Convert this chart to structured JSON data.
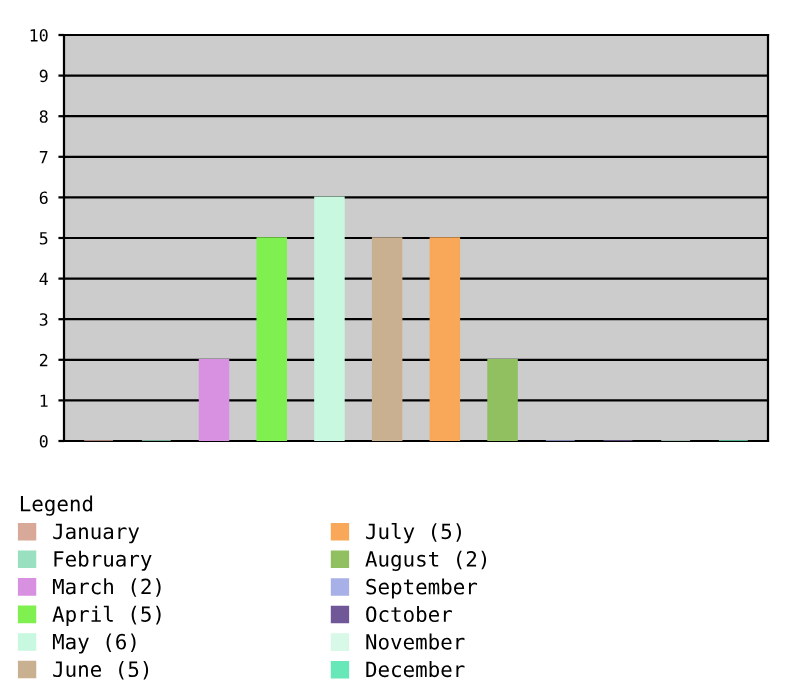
{
  "chart_data": {
    "type": "bar",
    "categories": [
      null,
      null,
      null,
      null,
      null,
      null,
      null,
      null,
      null,
      null,
      null,
      null
    ],
    "series": [
      {
        "name": "January",
        "color": "#d8a898",
        "values": [
          0,
          null,
          null,
          null,
          null,
          null,
          null,
          null,
          null,
          null,
          null,
          null
        ]
      },
      {
        "name": "February",
        "color": "#98e0c0",
        "values": [
          null,
          0,
          null,
          null,
          null,
          null,
          null,
          null,
          null,
          null,
          null,
          null
        ]
      },
      {
        "name": "March (2)",
        "color": "#d890e0",
        "values": [
          null,
          null,
          2,
          null,
          null,
          null,
          null,
          null,
          null,
          null,
          null,
          null
        ]
      },
      {
        "name": "April (5)",
        "color": "#80f050",
        "values": [
          null,
          null,
          null,
          5,
          null,
          null,
          null,
          null,
          null,
          null,
          null,
          null
        ]
      },
      {
        "name": "May (6)",
        "color": "#c8f8e0",
        "values": [
          null,
          null,
          null,
          null,
          6,
          null,
          null,
          null,
          null,
          null,
          null,
          null
        ]
      },
      {
        "name": "June (5)",
        "color": "#c8b090",
        "values": [
          null,
          null,
          null,
          null,
          null,
          5,
          null,
          null,
          null,
          null,
          null,
          null
        ]
      },
      {
        "name": "July (5)",
        "color": "#f8a858",
        "values": [
          null,
          null,
          null,
          null,
          null,
          null,
          5,
          null,
          null,
          null,
          null,
          null
        ]
      },
      {
        "name": "August (2)",
        "color": "#90c060",
        "values": [
          null,
          null,
          null,
          null,
          null,
          null,
          null,
          2,
          null,
          null,
          null,
          null
        ]
      },
      {
        "name": "September",
        "color": "#a8b0e8",
        "values": [
          null,
          null,
          null,
          null,
          null,
          null,
          null,
          null,
          0,
          null,
          null,
          null
        ]
      },
      {
        "name": "October",
        "color": "#705898",
        "values": [
          null,
          null,
          null,
          null,
          null,
          null,
          null,
          null,
          null,
          0,
          null,
          null
        ]
      },
      {
        "name": "November",
        "color": "#d8f8e8",
        "values": [
          null,
          null,
          null,
          null,
          null,
          null,
          null,
          null,
          null,
          null,
          0,
          null
        ]
      },
      {
        "name": "December",
        "color": "#68e8b8",
        "values": [
          null,
          null,
          null,
          null,
          null,
          null,
          null,
          null,
          null,
          null,
          null,
          0
        ]
      }
    ],
    "ylim": [
      0,
      10
    ],
    "yticks": [
      0,
      1,
      2,
      3,
      4,
      5,
      6,
      7,
      8,
      9,
      10
    ],
    "grid": "y",
    "legend": "bottom",
    "legend_title": "Legend",
    "tick_labels": "y"
  }
}
